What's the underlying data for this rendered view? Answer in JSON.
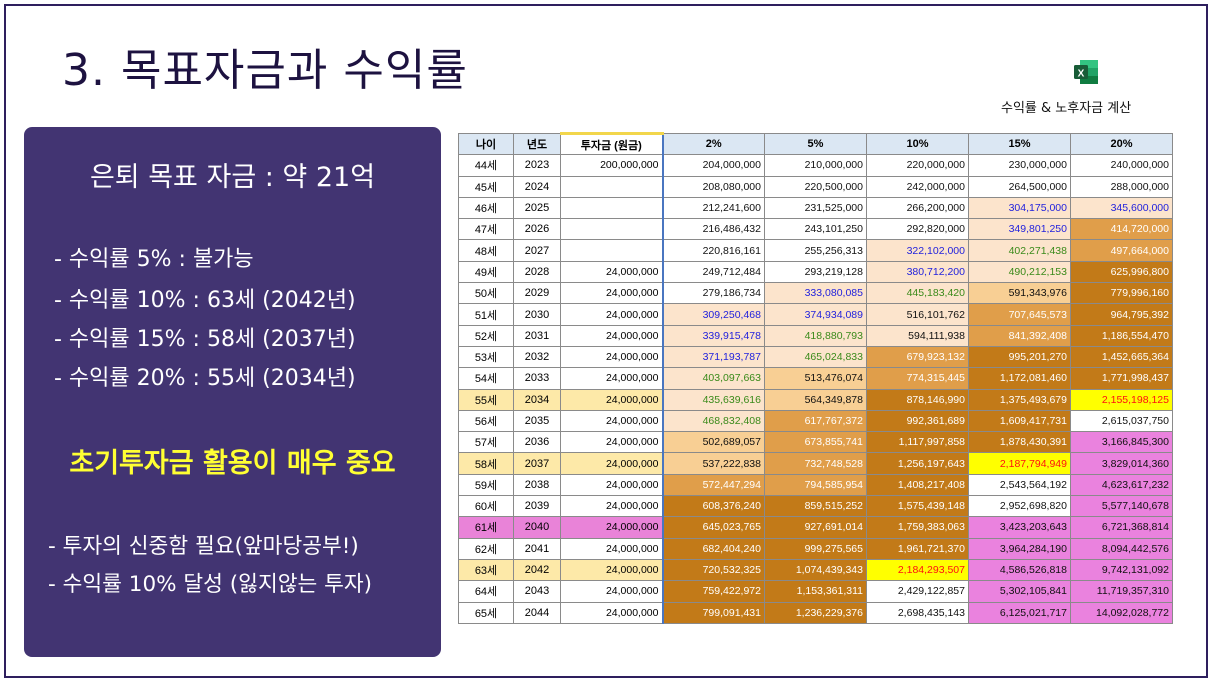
{
  "title": "3. 목표자금과 수익률",
  "excel": {
    "icon": "excel-icon",
    "caption": "수익률 & 노후자금 계산"
  },
  "panel": {
    "goal": "은퇴 목표 자금 : 약 21억",
    "lines": [
      "- 수익률 5% : 불가능",
      "- 수익률 10% : 63세 (2042년)",
      "- 수익률 15% : 58세 (2037년)",
      "- 수익률 20% : 55세 (2034년)"
    ],
    "emphasis": "초기투자금 활용이 매우 중요",
    "bottom": [
      "- 투자의 신중함 필요(앞마당공부!)",
      "- 수익률 10% 달성 (잃지않는 투자)"
    ]
  },
  "table": {
    "headers": [
      "나이",
      "년도",
      "투자금 (원금)",
      "2%",
      "5%",
      "10%",
      "15%",
      "20%"
    ],
    "rows": [
      [
        "44세",
        "2023",
        "200,000,000",
        "204,000,000",
        "210,000,000",
        "220,000,000",
        "230,000,000",
        "240,000,000"
      ],
      [
        "45세",
        "2024",
        "",
        "208,080,000",
        "220,500,000",
        "242,000,000",
        "264,500,000",
        "288,000,000"
      ],
      [
        "46세",
        "2025",
        "",
        "212,241,600",
        "231,525,000",
        "266,200,000",
        "304,175,000",
        "345,600,000"
      ],
      [
        "47세",
        "2026",
        "",
        "216,486,432",
        "243,101,250",
        "292,820,000",
        "349,801,250",
        "414,720,000"
      ],
      [
        "48세",
        "2027",
        "",
        "220,816,161",
        "255,256,313",
        "322,102,000",
        "402,271,438",
        "497,664,000"
      ],
      [
        "49세",
        "2028",
        "24,000,000",
        "249,712,484",
        "293,219,128",
        "380,712,200",
        "490,212,153",
        "625,996,800"
      ],
      [
        "50세",
        "2029",
        "24,000,000",
        "279,186,734",
        "333,080,085",
        "445,183,420",
        "591,343,976",
        "779,996,160"
      ],
      [
        "51세",
        "2030",
        "24,000,000",
        "309,250,468",
        "374,934,089",
        "516,101,762",
        "707,645,573",
        "964,795,392"
      ],
      [
        "52세",
        "2031",
        "24,000,000",
        "339,915,478",
        "418,880,793",
        "594,111,938",
        "841,392,408",
        "1,186,554,470"
      ],
      [
        "53세",
        "2032",
        "24,000,000",
        "371,193,787",
        "465,024,833",
        "679,923,132",
        "995,201,270",
        "1,452,665,364"
      ],
      [
        "54세",
        "2033",
        "24,000,000",
        "403,097,663",
        "513,476,074",
        "774,315,445",
        "1,172,081,460",
        "1,771,998,437"
      ],
      [
        "55세",
        "2034",
        "24,000,000",
        "435,639,616",
        "564,349,878",
        "878,146,990",
        "1,375,493,679",
        "2,155,198,125"
      ],
      [
        "56세",
        "2035",
        "24,000,000",
        "468,832,408",
        "617,767,372",
        "992,361,689",
        "1,609,417,731",
        "2,615,037,750"
      ],
      [
        "57세",
        "2036",
        "24,000,000",
        "502,689,057",
        "673,855,741",
        "1,117,997,858",
        "1,878,430,391",
        "3,166,845,300"
      ],
      [
        "58세",
        "2037",
        "24,000,000",
        "537,222,838",
        "732,748,528",
        "1,256,197,643",
        "2,187,794,949",
        "3,829,014,360"
      ],
      [
        "59세",
        "2038",
        "24,000,000",
        "572,447,294",
        "794,585,954",
        "1,408,217,408",
        "2,543,564,192",
        "4,623,617,232"
      ],
      [
        "60세",
        "2039",
        "24,000,000",
        "608,376,240",
        "859,515,252",
        "1,575,439,148",
        "2,952,698,820",
        "5,577,140,678"
      ],
      [
        "61세",
        "2040",
        "24,000,000",
        "645,023,765",
        "927,691,014",
        "1,759,383,063",
        "3,423,203,643",
        "6,721,368,814"
      ],
      [
        "62세",
        "2041",
        "24,000,000",
        "682,404,240",
        "999,275,565",
        "1,961,721,370",
        "3,964,284,190",
        "8,094,442,576"
      ],
      [
        "63세",
        "2042",
        "24,000,000",
        "720,532,325",
        "1,074,439,343",
        "2,184,293,507",
        "4,586,526,818",
        "9,742,131,092"
      ],
      [
        "64세",
        "2043",
        "24,000,000",
        "759,422,972",
        "1,153,361,311",
        "2,429,122,857",
        "5,302,105,841",
        "11,719,357,310"
      ],
      [
        "65세",
        "2044",
        "24,000,000",
        "799,091,431",
        "1,236,229,376",
        "2,698,435,143",
        "6,125,021,717",
        "14,092,028,772"
      ]
    ]
  },
  "colors": {
    "panel_bg": "#423472",
    "emphasis": "#ffff33",
    "pale": "#fce4cc",
    "peach": "#f8cf94",
    "orange": "#e09e4a",
    "brown": "#c27a18",
    "pink": "#ea82de",
    "yellow": "#ffff00",
    "white": "#ffffff",
    "header": "#dbe7f3",
    "text_blue": "#2222dd",
    "text_green": "#3a8a1a",
    "text_white": "#ffffff",
    "text_red": "#ff1111",
    "text_dark": "#111111"
  }
}
